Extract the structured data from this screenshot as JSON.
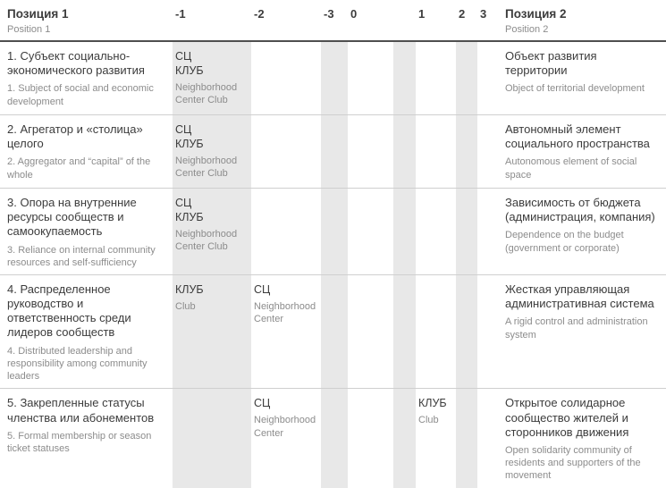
{
  "colors": {
    "stripe": "#e8e8e8",
    "text_dark": "#3c3c3c",
    "text_gray": "#8c8c8c",
    "header_rule": "#4f4f4f",
    "row_rule": "#cfcfcf"
  },
  "table": {
    "header": {
      "pos1_title": "Позиция 1",
      "pos1_subtitle": "Position 1",
      "scale": {
        "m1": "-1",
        "m2": "-2",
        "m3": "-3",
        "z0": "0",
        "p1": "1",
        "p2": "2",
        "p3": "3"
      },
      "pos2_title": "Позиция 2",
      "pos2_subtitle": "Position 2"
    },
    "rows": [
      {
        "pos1": {
          "ru": "1. Субъект социально-экономического развития",
          "en": "1. Subject of social and economic development"
        },
        "marks": {
          "m1": {
            "ru": "СЦ\nКЛУБ",
            "en": "Neighborhood Center Club"
          }
        },
        "pos2": {
          "ru": "Объект развития территории",
          "en": "Object of territorial development"
        }
      },
      {
        "pos1": {
          "ru": "2. Агрегатор и «столица» целого",
          "en": "2. Aggregator and “capital” of the whole"
        },
        "marks": {
          "m1": {
            "ru": "СЦ\nКЛУБ",
            "en": "Neighborhood Center Club"
          }
        },
        "pos2": {
          "ru": "Автономный элемент социального пространства",
          "en": "Autonomous element of social space"
        }
      },
      {
        "pos1": {
          "ru": "3. Опора на внутренние ресурсы сообществ и самоокупаемость",
          "en": "3. Reliance on internal community resources and self-sufficiency"
        },
        "marks": {
          "m1": {
            "ru": "СЦ\nКЛУБ",
            "en": "Neighborhood Center Club"
          }
        },
        "pos2": {
          "ru": "Зависимость от бюджета (администрация, компания)",
          "en": "Dependence on the budget (government or corporate)"
        }
      },
      {
        "pos1": {
          "ru": "4. Распределенное руководство и ответственность среди лидеров сообществ",
          "en": "4. Distributed leadership and responsibility among community leaders"
        },
        "marks": {
          "m1": {
            "ru": "КЛУБ",
            "en": "Club"
          },
          "m2": {
            "ru": "СЦ",
            "en": "Neighborhood Center"
          }
        },
        "pos2": {
          "ru": "Жесткая управляющая административная система",
          "en": "A rigid control and administration system"
        }
      },
      {
        "pos1": {
          "ru": "5. Закрепленные статусы членства или абонементов",
          "en": "5. Formal membership or season ticket statuses"
        },
        "marks": {
          "m2": {
            "ru": "СЦ",
            "en": "Neighborhood Center"
          },
          "p1": {
            "ru": "КЛУБ",
            "en": "Club"
          }
        },
        "pos2": {
          "ru": "Открытое солидарное сообщество жителей и сторонников движения",
          "en": "Open solidarity community of residents and supporters of the movement"
        }
      }
    ]
  }
}
